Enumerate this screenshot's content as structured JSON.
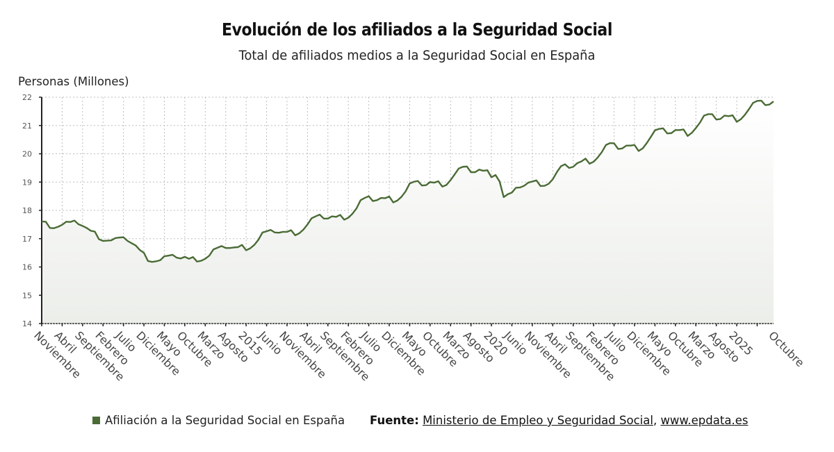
{
  "chart_data": {
    "type": "area",
    "title": "Evolución de los afiliados a la Seguridad Social",
    "subtitle": "Total de afiliados medios a la Seguridad Social en España",
    "ylabel": "Personas (Millones)",
    "xlabel": "",
    "ylim": [
      14,
      22
    ],
    "yticks": [
      14,
      15,
      16,
      17,
      18,
      19,
      20,
      21,
      22
    ],
    "grid": true,
    "x_start": "Noviembre 2010",
    "x_end": "Octubre 2025",
    "x_step": "monthly",
    "xtick_every_months": 5,
    "xtick_labels": [
      "Noviembre",
      "Abril",
      "Septiembre",
      "Febrero",
      "Julio",
      "Diciembre",
      "Mayo",
      "Octubre",
      "Marzo",
      "Agosto",
      "2015",
      "Junio",
      "Noviembre",
      "Abril",
      "Septiembre",
      "Febrero",
      "Julio",
      "Diciembre",
      "Mayo",
      "Octubre",
      "Marzo",
      "Agosto",
      "2020",
      "Junio",
      "Noviembre",
      "Abril",
      "Septiembre",
      "Febrero",
      "Julio",
      "Diciembre",
      "Mayo",
      "Octubre",
      "Marzo",
      "Agosto",
      "2025"
    ],
    "xtick_last_label": "Octubre",
    "series": [
      {
        "name": "Afiliación a la Seguridad Social en España",
        "color": "#4a6b35",
        "values": [
          17.61,
          17.6,
          17.38,
          17.37,
          17.42,
          17.49,
          17.6,
          17.59,
          17.64,
          17.51,
          17.45,
          17.38,
          17.28,
          17.25,
          16.98,
          16.92,
          16.93,
          16.94,
          17.02,
          17.04,
          17.05,
          16.92,
          16.84,
          16.76,
          16.6,
          16.5,
          16.21,
          16.18,
          16.2,
          16.24,
          16.38,
          16.4,
          16.43,
          16.33,
          16.3,
          16.36,
          16.29,
          16.35,
          16.19,
          16.22,
          16.29,
          16.4,
          16.62,
          16.68,
          16.74,
          16.67,
          16.67,
          16.69,
          16.7,
          16.78,
          16.59,
          16.66,
          16.78,
          16.96,
          17.22,
          17.26,
          17.31,
          17.22,
          17.21,
          17.24,
          17.24,
          17.3,
          17.12,
          17.19,
          17.32,
          17.5,
          17.72,
          17.79,
          17.85,
          17.71,
          17.71,
          17.79,
          17.77,
          17.84,
          17.67,
          17.74,
          17.88,
          18.07,
          18.36,
          18.44,
          18.5,
          18.33,
          18.36,
          18.44,
          18.43,
          18.49,
          18.28,
          18.35,
          18.48,
          18.67,
          18.95,
          19.01,
          19.04,
          18.88,
          18.89,
          19.0,
          18.98,
          19.03,
          18.84,
          18.9,
          19.07,
          19.27,
          19.48,
          19.54,
          19.55,
          19.35,
          19.35,
          19.44,
          19.4,
          19.42,
          19.17,
          19.25,
          19.02,
          18.47,
          18.57,
          18.63,
          18.8,
          18.81,
          18.87,
          18.98,
          19.02,
          19.06,
          18.86,
          18.87,
          18.94,
          19.1,
          19.35,
          19.56,
          19.63,
          19.5,
          19.54,
          19.67,
          19.73,
          19.83,
          19.65,
          19.72,
          19.87,
          20.06,
          20.31,
          20.38,
          20.37,
          20.17,
          20.19,
          20.29,
          20.29,
          20.31,
          20.1,
          20.19,
          20.38,
          20.6,
          20.83,
          20.88,
          20.9,
          20.72,
          20.73,
          20.84,
          20.84,
          20.86,
          20.63,
          20.74,
          20.91,
          21.1,
          21.35,
          21.4,
          21.4,
          21.21,
          21.23,
          21.35,
          21.33,
          21.36,
          21.13,
          21.22,
          21.38,
          21.58,
          21.8,
          21.87,
          21.88,
          21.72,
          21.74,
          21.85
        ]
      }
    ]
  },
  "legend": {
    "label": "Afiliación a la Seguridad Social en España",
    "color": "#4a6b35"
  },
  "source": {
    "prefix": "Fuente:",
    "link1": "Ministerio de Empleo y Seguridad Social",
    "separator": ",",
    "link2": "www.epdata.es"
  }
}
